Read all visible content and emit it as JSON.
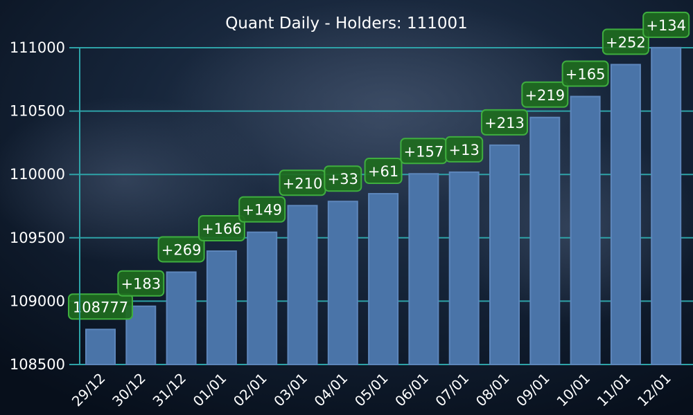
{
  "chart_data": {
    "type": "bar",
    "title": "Quant Daily - Holders: 111001",
    "xlabel": "",
    "ylabel": "",
    "categories": [
      "29/12",
      "30/12",
      "31/12",
      "01/01",
      "02/01",
      "03/01",
      "04/01",
      "05/01",
      "06/01",
      "07/01",
      "08/01",
      "09/01",
      "10/01",
      "11/01",
      "12/01"
    ],
    "values": [
      108777,
      108960,
      109229,
      109395,
      109544,
      109754,
      109787,
      109848,
      110005,
      110018,
      110231,
      110450,
      110615,
      110867,
      111001
    ],
    "labels": [
      "108777",
      "+183",
      "+269",
      "+166",
      "+149",
      "+210",
      "+33",
      "+61",
      "+157",
      "+13",
      "+213",
      "+219",
      "+165",
      "+252",
      "+134"
    ],
    "yticks": [
      108500,
      109000,
      109500,
      110000,
      110500,
      111000
    ],
    "ylim": [
      108500,
      111150
    ],
    "grid": true,
    "legend": "none"
  },
  "colors": {
    "bar": "#4a74a8",
    "bar_edge": "#5d86bb",
    "grid": "#2ea3a8",
    "label_bg": "#1e6b1e",
    "label_border": "#3fae3f",
    "text": "#ffffff"
  }
}
